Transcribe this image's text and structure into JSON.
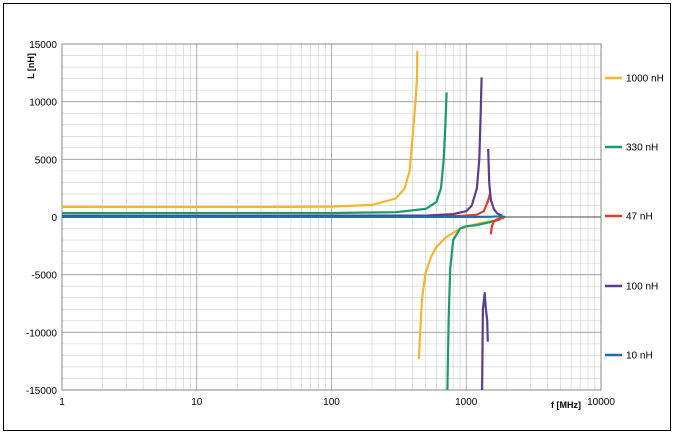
{
  "chart_data": {
    "type": "line",
    "title": "",
    "xlabel": "f [MHz]",
    "ylabel": "L [nH]",
    "x_scale": "log",
    "xlim": [
      1,
      10000
    ],
    "ylim": [
      -15000,
      15000
    ],
    "grid": true,
    "legend_position": "right",
    "x_ticks": [
      "1",
      "10",
      "100",
      "1000",
      "10000"
    ],
    "y_ticks": [
      "15000",
      "10000",
      "5000",
      "0",
      "-5000",
      "-10000",
      "-15000"
    ],
    "series": [
      {
        "name": "1000 nH",
        "color": "#f4b530",
        "segments": [
          [
            [
              1,
              880
            ],
            [
              10,
              870
            ],
            [
              50,
              880
            ],
            [
              100,
              900
            ],
            [
              200,
              1050
            ],
            [
              300,
              1600
            ],
            [
              350,
              2500
            ],
            [
              380,
              4000
            ],
            [
              400,
              7000
            ],
            [
              420,
              10000
            ],
            [
              430,
              12000
            ],
            [
              433,
              14400
            ]
          ],
          [
            [
              445,
              -12300
            ],
            [
              455,
              -10000
            ],
            [
              470,
              -7000
            ],
            [
              500,
              -4800
            ],
            [
              550,
              -3400
            ],
            [
              600,
              -2600
            ],
            [
              700,
              -1800
            ],
            [
              900,
              -1000
            ],
            [
              1200,
              -600
            ],
            [
              1600,
              -300
            ],
            [
              1900,
              -100
            ]
          ]
        ]
      },
      {
        "name": "330 nH",
        "color": "#1a9a6c",
        "segments": [
          [
            [
              1,
              340
            ],
            [
              100,
              350
            ],
            [
              300,
              420
            ],
            [
              500,
              700
            ],
            [
              600,
              1300
            ],
            [
              650,
              2500
            ],
            [
              680,
              5000
            ],
            [
              700,
              8000
            ],
            [
              715,
              10800
            ]
          ],
          [
            [
              725,
              -15000
            ],
            [
              740,
              -9000
            ],
            [
              760,
              -4500
            ],
            [
              800,
              -2000
            ],
            [
              900,
              -1000
            ],
            [
              1000,
              -800
            ],
            [
              1200,
              -700
            ],
            [
              1500,
              -450
            ],
            [
              1800,
              -200
            ]
          ]
        ]
      },
      {
        "name": "47 nH",
        "color": "#e23a2c",
        "segments": [
          [
            [
              1,
              47
            ],
            [
              500,
              55
            ],
            [
              900,
              90
            ],
            [
              1200,
              200
            ],
            [
              1350,
              500
            ],
            [
              1450,
              1400
            ],
            [
              1500,
              2000
            ]
          ],
          [
            [
              1520,
              -1500
            ],
            [
              1550,
              -800
            ],
            [
              1600,
              -400
            ],
            [
              1700,
              -200
            ],
            [
              1800,
              -100
            ],
            [
              1900,
              -50
            ]
          ]
        ]
      },
      {
        "name": "100 nH",
        "color": "#5a3e8a",
        "segments": [
          [
            [
              1,
              100
            ],
            [
              500,
              120
            ],
            [
              800,
              250
            ],
            [
              1000,
              500
            ],
            [
              1100,
              1000
            ],
            [
              1200,
              2500
            ],
            [
              1250,
              5000
            ],
            [
              1280,
              9000
            ],
            [
              1300,
              12100
            ]
          ],
          [
            [
              1310,
              -15000
            ],
            [
              1330,
              -8000
            ],
            [
              1370,
              -6600
            ],
            [
              1400,
              -8000
            ],
            [
              1430,
              -9000
            ],
            [
              1445,
              -10800
            ]
          ],
          [
            [
              1455,
              5900
            ],
            [
              1480,
              3000
            ],
            [
              1520,
              1500
            ],
            [
              1600,
              700
            ],
            [
              1700,
              300
            ],
            [
              1850,
              100
            ]
          ]
        ]
      },
      {
        "name": "10 nH",
        "color": "#1f6fa8",
        "segments": [
          [
            [
              1,
              10
            ],
            [
              1000,
              12
            ],
            [
              1500,
              20
            ],
            [
              1800,
              60
            ],
            [
              1950,
              0
            ]
          ]
        ]
      }
    ]
  }
}
